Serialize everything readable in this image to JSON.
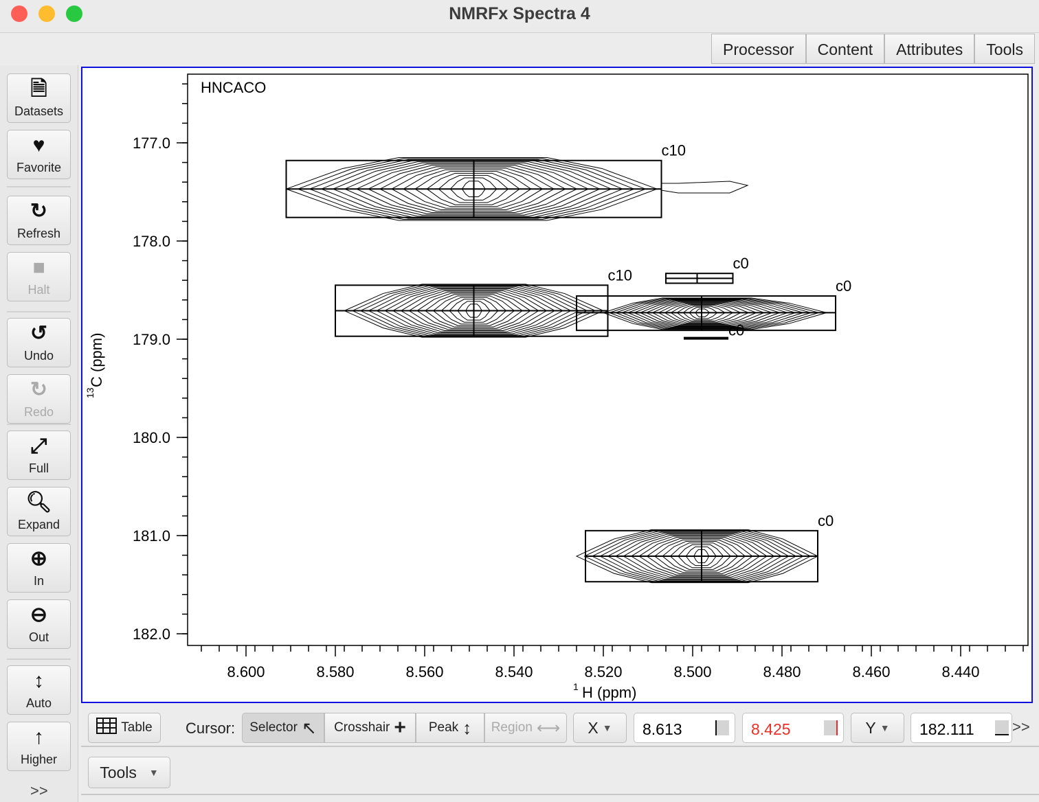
{
  "window": {
    "title": "NMRFx Spectra 4",
    "traffic_lights": [
      "#ff5f57",
      "#febc2e",
      "#28c840"
    ]
  },
  "tabs": [
    {
      "label": "Processor"
    },
    {
      "label": "Content"
    },
    {
      "label": "Attributes"
    },
    {
      "label": "Tools"
    }
  ],
  "sidebar": {
    "items": [
      {
        "label": "Datasets",
        "icon": "file-icon",
        "disabled": false
      },
      {
        "label": "Favorite",
        "icon": "heart-icon",
        "disabled": false
      },
      {
        "label": "Refresh",
        "icon": "refresh-icon",
        "disabled": false
      },
      {
        "label": "Halt",
        "icon": "stop-icon",
        "disabled": true
      },
      {
        "label": "Undo",
        "icon": "undo-icon",
        "disabled": false
      },
      {
        "label": "Redo",
        "icon": "redo-icon",
        "disabled": true
      },
      {
        "label": "Full",
        "icon": "expand-arrows-icon",
        "disabled": false
      },
      {
        "label": "Expand",
        "icon": "search-icon",
        "disabled": false
      },
      {
        "label": "In",
        "icon": "zoom-in-icon",
        "disabled": false
      },
      {
        "label": "Out",
        "icon": "zoom-out-icon",
        "disabled": false
      },
      {
        "label": "Auto",
        "icon": "vertical-arrows-icon",
        "disabled": false
      },
      {
        "label": "Higher",
        "icon": "arrow-up-icon",
        "disabled": false
      }
    ],
    "more": ">>"
  },
  "chart_data": {
    "type": "contour",
    "title": "HNCACO",
    "xlabel_sup": "1",
    "xlabel": "H (ppm)",
    "ylabel_sup": "13",
    "ylabel": "C (ppm)",
    "xlim": [
      8.613,
      8.425
    ],
    "ylim": [
      176.3,
      182.111
    ],
    "x_ticks": [
      "8.600",
      "8.580",
      "8.560",
      "8.540",
      "8.520",
      "8.500",
      "8.480",
      "8.460",
      "8.440"
    ],
    "y_ticks": [
      "177.0",
      "178.0",
      "179.0",
      "180.0",
      "181.0",
      "182.0"
    ],
    "peaks": [
      {
        "label": "c10",
        "x": 8.549,
        "y": 177.47,
        "box_x": [
          8.591,
          8.507
        ],
        "box_y": [
          177.18,
          177.76
        ],
        "contour_x": [
          8.591,
          8.508
        ],
        "contour_y": [
          177.15,
          177.79
        ]
      },
      {
        "label": "c10",
        "x": 8.549,
        "y": 178.71,
        "box_x": [
          8.58,
          8.519
        ],
        "box_y": [
          178.45,
          178.97
        ],
        "contour_x": [
          8.578,
          8.52
        ],
        "contour_y": [
          178.44,
          178.98
        ]
      },
      {
        "label": "c0",
        "x": 8.498,
        "y": 178.73,
        "box_x": [
          8.526,
          8.468
        ],
        "box_y": [
          178.56,
          178.91
        ],
        "contour_x": [
          8.52,
          8.47
        ],
        "contour_y": [
          178.58,
          178.9
        ]
      },
      {
        "label": "c0",
        "x": 8.499,
        "y": 178.38,
        "box_x": [
          8.506,
          8.491
        ],
        "box_y": [
          178.33,
          178.43
        ]
      },
      {
        "label": "c0",
        "x": 8.497,
        "y": 178.99,
        "box_x": [
          8.502,
          8.492
        ],
        "box_y": [
          178.99,
          178.99
        ]
      },
      {
        "label": "c0",
        "x": 8.498,
        "y": 181.21,
        "box_x": [
          8.524,
          8.472
        ],
        "box_y": [
          180.95,
          181.47
        ],
        "contour_x": [
          8.526,
          8.472
        ],
        "contour_y": [
          180.94,
          181.48
        ]
      }
    ]
  },
  "bottom": {
    "table_label": "Table",
    "cursor_label": "Cursor:",
    "cursor_modes": [
      {
        "label": "Selector",
        "selected": true
      },
      {
        "label": "Crosshair"
      },
      {
        "label": "Peak"
      },
      {
        "label": "Region",
        "disabled": true
      }
    ],
    "x_axis": "X",
    "x_min": "8.613",
    "x_max": "8.425",
    "x_max_color": "#e8302a",
    "y_axis": "Y",
    "y_value": "182.111",
    "more": ">>",
    "tools_label": "Tools"
  }
}
